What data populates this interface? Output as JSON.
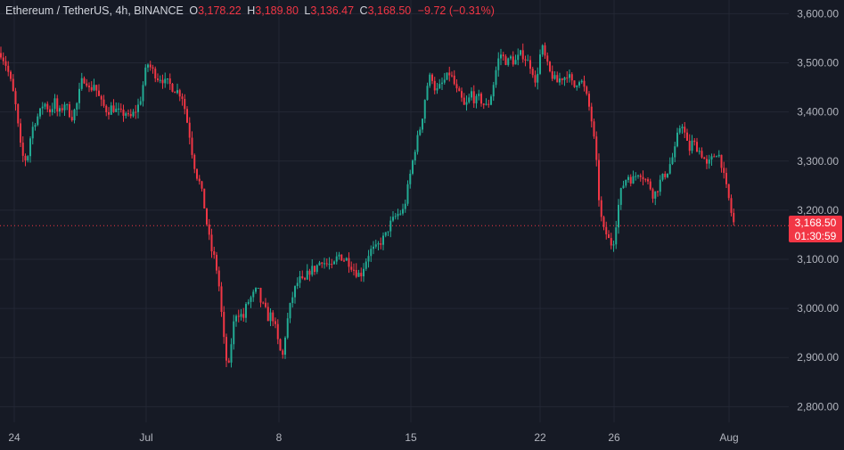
{
  "legend": {
    "symbol": "Ethereum / TetherUS, 4h, BINANCE",
    "open_label": "O",
    "open": "3,178.22",
    "high_label": "H",
    "high": "3,189.80",
    "low_label": "L",
    "low": "3,136.47",
    "close_label": "C",
    "close": "3,168.50",
    "change": "−9.72 (−0.31%)"
  },
  "price_tag": {
    "price": "3,168.50",
    "countdown": "01:30:59"
  },
  "colors": {
    "up": "#22ab94",
    "down": "#f23645",
    "background": "#161a25",
    "grid": "#232734",
    "axis_text": "#b2b5be"
  },
  "chart_data": {
    "type": "candlestick",
    "y_ticks": [
      "3,600.00",
      "3,500.00",
      "3,400.00",
      "3,300.00",
      "3,200.00",
      "3,100.00",
      "3,000.00",
      "2,900.00",
      "2,800.00"
    ],
    "y_tick_values": [
      3600,
      3500,
      3400,
      3300,
      3200,
      3100,
      3000,
      2900,
      2800
    ],
    "ylim": [
      2768,
      3628
    ],
    "x_ticks": [
      "24",
      "Jul",
      "8",
      "15",
      "22",
      "26",
      "Aug"
    ],
    "current_price": 3168.5,
    "anchors": [
      [
        0,
        3520
      ],
      [
        6,
        3495
      ],
      [
        10,
        3470
      ],
      [
        16,
        3420
      ],
      [
        22,
        3330
      ],
      [
        26,
        3300
      ],
      [
        30,
        3310
      ],
      [
        34,
        3360
      ],
      [
        38,
        3380
      ],
      [
        44,
        3400
      ],
      [
        48,
        3420
      ],
      [
        52,
        3410
      ],
      [
        56,
        3400
      ],
      [
        60,
        3425
      ],
      [
        64,
        3395
      ],
      [
        68,
        3405
      ],
      [
        72,
        3420
      ],
      [
        76,
        3400
      ],
      [
        80,
        3390
      ],
      [
        86,
        3420
      ],
      [
        90,
        3460
      ],
      [
        95,
        3470
      ],
      [
        100,
        3440
      ],
      [
        104,
        3460
      ],
      [
        108,
        3440
      ],
      [
        112,
        3420
      ],
      [
        116,
        3410
      ],
      [
        120,
        3400
      ],
      [
        124,
        3410
      ],
      [
        128,
        3405
      ],
      [
        132,
        3400
      ],
      [
        136,
        3395
      ],
      [
        140,
        3400
      ],
      [
        144,
        3385
      ],
      [
        148,
        3395
      ],
      [
        152,
        3405
      ],
      [
        156,
        3420
      ],
      [
        160,
        3460
      ],
      [
        164,
        3500
      ],
      [
        168,
        3490
      ],
      [
        172,
        3480
      ],
      [
        176,
        3470
      ],
      [
        180,
        3470
      ],
      [
        184,
        3460
      ],
      [
        188,
        3460
      ],
      [
        192,
        3450
      ],
      [
        196,
        3445
      ],
      [
        200,
        3440
      ],
      [
        204,
        3430
      ],
      [
        208,
        3390
      ],
      [
        212,
        3350
      ],
      [
        216,
        3300
      ],
      [
        220,
        3270
      ],
      [
        224,
        3250
      ],
      [
        228,
        3210
      ],
      [
        232,
        3160
      ],
      [
        236,
        3120
      ],
      [
        240,
        3100
      ],
      [
        244,
        3060
      ],
      [
        248,
        2980
      ],
      [
        252,
        2900
      ],
      [
        256,
        2880
      ],
      [
        260,
        2960
      ],
      [
        264,
        2990
      ],
      [
        268,
        2990
      ],
      [
        272,
        2980
      ],
      [
        276,
        3010
      ],
      [
        280,
        3020
      ],
      [
        284,
        3030
      ],
      [
        288,
        3040
      ],
      [
        292,
        3010
      ],
      [
        296,
        3000
      ],
      [
        300,
        2980
      ],
      [
        304,
        2990
      ],
      [
        308,
        2960
      ],
      [
        312,
        2920
      ],
      [
        316,
        2900
      ],
      [
        320,
        2960
      ],
      [
        324,
        3000
      ],
      [
        328,
        3030
      ],
      [
        332,
        3050
      ],
      [
        336,
        3060
      ],
      [
        340,
        3050
      ],
      [
        344,
        3070
      ],
      [
        348,
        3080
      ],
      [
        352,
        3080
      ],
      [
        356,
        3090
      ],
      [
        360,
        3100
      ],
      [
        364,
        3090
      ],
      [
        368,
        3090
      ],
      [
        372,
        3080
      ],
      [
        376,
        3100
      ],
      [
        380,
        3110
      ],
      [
        384,
        3100
      ],
      [
        388,
        3100
      ],
      [
        392,
        3090
      ],
      [
        396,
        3080
      ],
      [
        400,
        3070
      ],
      [
        404,
        3070
      ],
      [
        408,
        3090
      ],
      [
        412,
        3110
      ],
      [
        416,
        3120
      ],
      [
        420,
        3120
      ],
      [
        424,
        3130
      ],
      [
        428,
        3140
      ],
      [
        432,
        3150
      ],
      [
        436,
        3170
      ],
      [
        440,
        3180
      ],
      [
        444,
        3190
      ],
      [
        448,
        3195
      ],
      [
        452,
        3200
      ],
      [
        456,
        3240
      ],
      [
        460,
        3280
      ],
      [
        464,
        3320
      ],
      [
        468,
        3350
      ],
      [
        472,
        3380
      ],
      [
        476,
        3430
      ],
      [
        480,
        3470
      ],
      [
        484,
        3470
      ],
      [
        488,
        3440
      ],
      [
        492,
        3450
      ],
      [
        496,
        3460
      ],
      [
        500,
        3470
      ],
      [
        504,
        3480
      ],
      [
        508,
        3460
      ],
      [
        512,
        3440
      ],
      [
        516,
        3430
      ],
      [
        520,
        3410
      ],
      [
        524,
        3420
      ],
      [
        528,
        3440
      ],
      [
        532,
        3420
      ],
      [
        536,
        3430
      ],
      [
        540,
        3420
      ],
      [
        544,
        3410
      ],
      [
        548,
        3420
      ],
      [
        552,
        3450
      ],
      [
        556,
        3490
      ],
      [
        560,
        3520
      ],
      [
        564,
        3510
      ],
      [
        568,
        3500
      ],
      [
        572,
        3510
      ],
      [
        576,
        3500
      ],
      [
        580,
        3510
      ],
      [
        584,
        3520
      ],
      [
        588,
        3510
      ],
      [
        592,
        3500
      ],
      [
        596,
        3490
      ],
      [
        600,
        3450
      ],
      [
        604,
        3510
      ],
      [
        608,
        3530
      ],
      [
        612,
        3500
      ],
      [
        616,
        3480
      ],
      [
        620,
        3470
      ],
      [
        624,
        3460
      ],
      [
        628,
        3470
      ],
      [
        632,
        3470
      ],
      [
        636,
        3480
      ],
      [
        640,
        3460
      ],
      [
        644,
        3450
      ],
      [
        648,
        3470
      ],
      [
        652,
        3460
      ],
      [
        656,
        3440
      ],
      [
        660,
        3410
      ],
      [
        664,
        3370
      ],
      [
        668,
        3300
      ],
      [
        672,
        3200
      ],
      [
        676,
        3160
      ],
      [
        680,
        3150
      ],
      [
        684,
        3130
      ],
      [
        688,
        3140
      ],
      [
        692,
        3200
      ],
      [
        696,
        3240
      ],
      [
        700,
        3260
      ],
      [
        704,
        3270
      ],
      [
        708,
        3260
      ],
      [
        712,
        3270
      ],
      [
        716,
        3280
      ],
      [
        720,
        3270
      ],
      [
        724,
        3260
      ],
      [
        728,
        3250
      ],
      [
        732,
        3230
      ],
      [
        736,
        3240
      ],
      [
        740,
        3260
      ],
      [
        744,
        3270
      ],
      [
        748,
        3280
      ],
      [
        752,
        3300
      ],
      [
        756,
        3320
      ],
      [
        760,
        3360
      ],
      [
        764,
        3380
      ],
      [
        768,
        3350
      ],
      [
        772,
        3320
      ],
      [
        776,
        3340
      ],
      [
        780,
        3330
      ],
      [
        784,
        3320
      ],
      [
        788,
        3310
      ],
      [
        792,
        3290
      ],
      [
        796,
        3300
      ],
      [
        800,
        3310
      ],
      [
        804,
        3320
      ],
      [
        808,
        3300
      ],
      [
        812,
        3260
      ],
      [
        816,
        3230
      ],
      [
        820,
        3190
      ],
      [
        823,
        3168.5
      ]
    ]
  }
}
